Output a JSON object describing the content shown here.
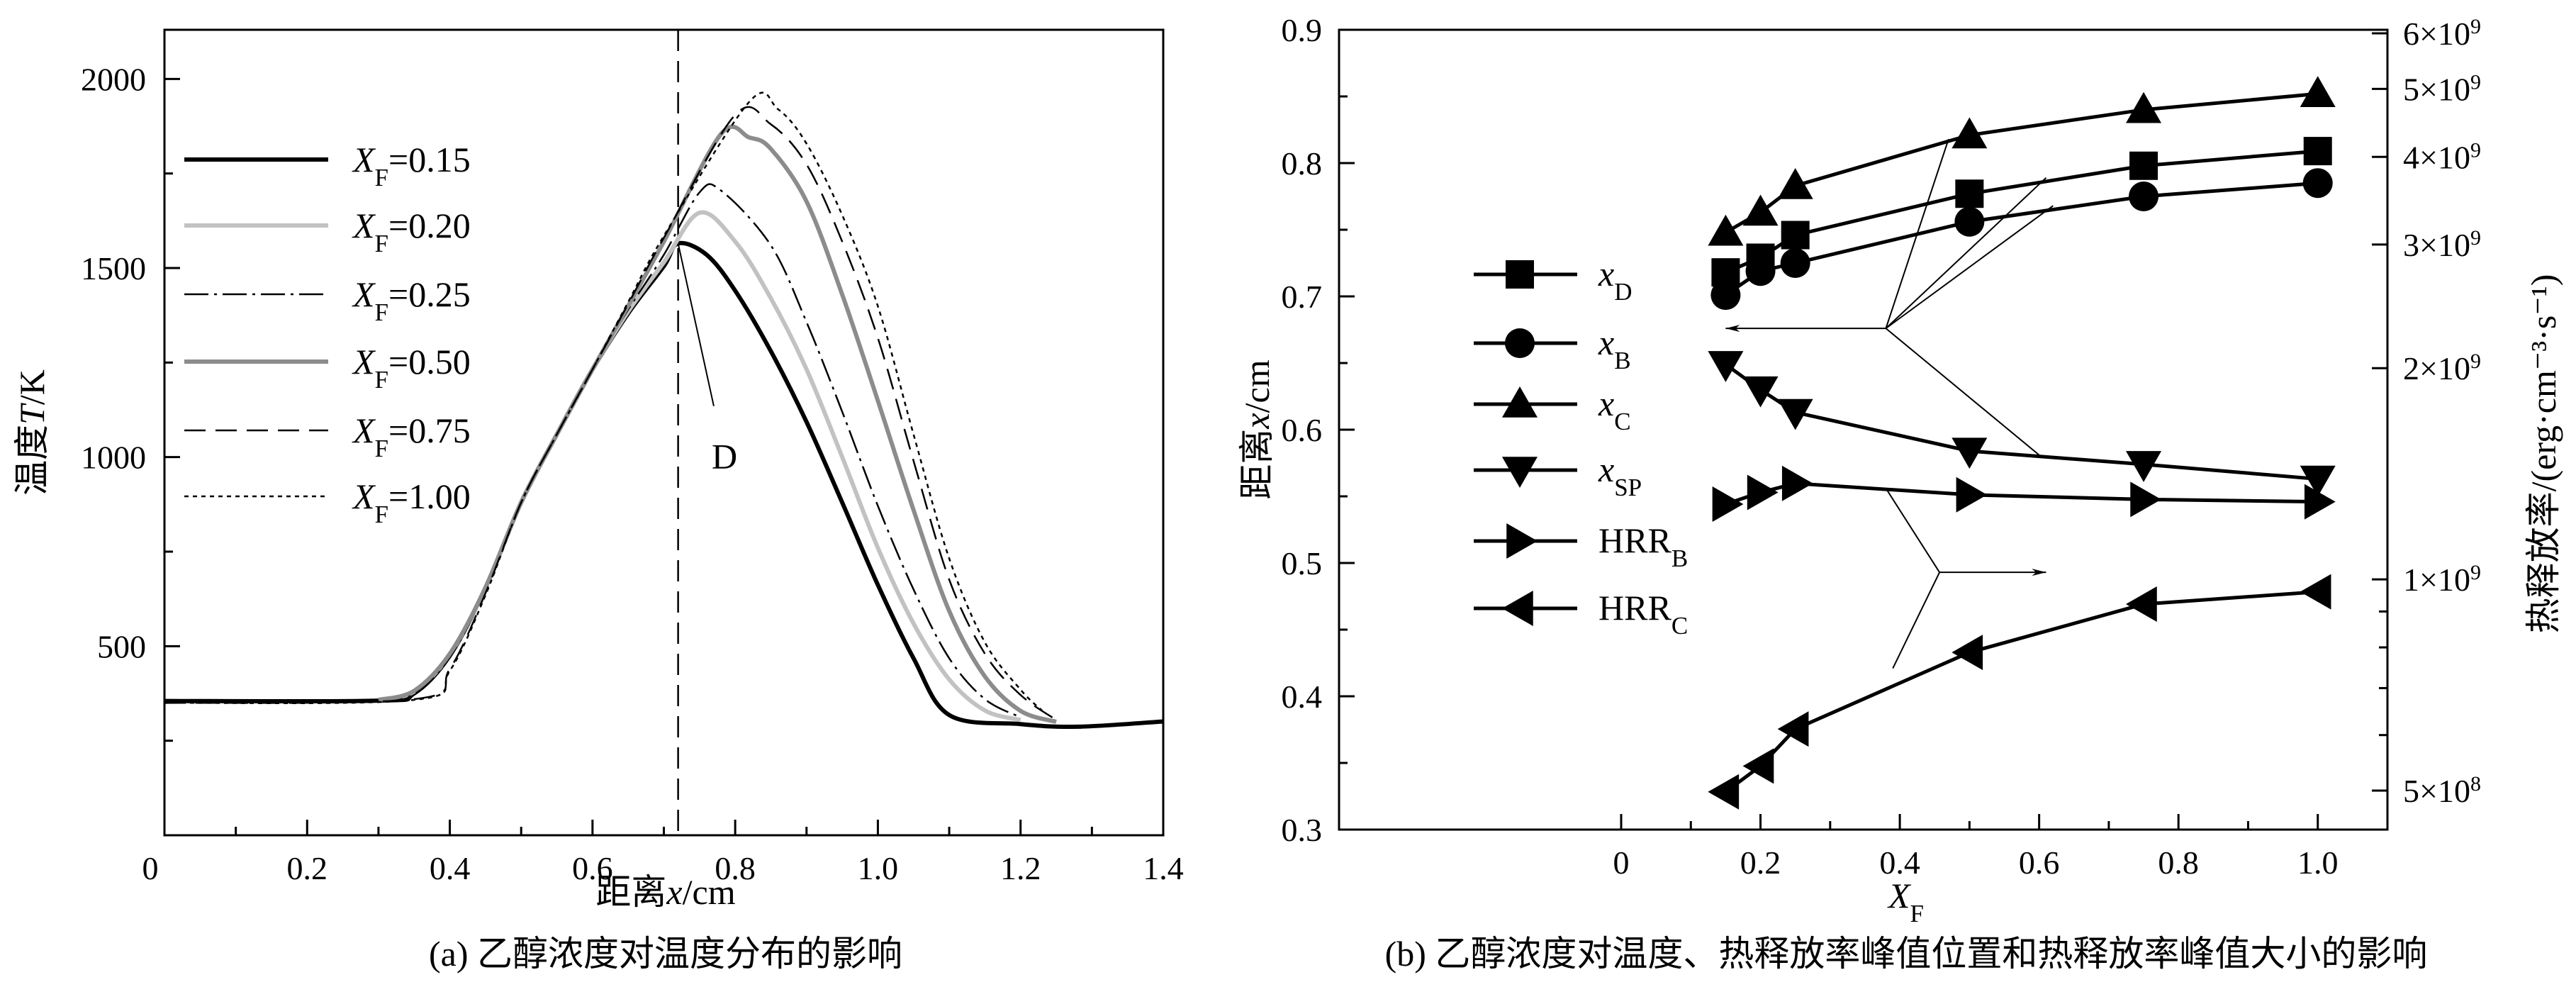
{
  "chart_data": [
    {
      "type": "line",
      "title": "",
      "caption": "(a) 乙醇浓度对温度分布的影响",
      "xlabel": {
        "pre": "距离",
        "var": "x",
        "post": "/cm"
      },
      "ylabel": {
        "pre": "温度",
        "var": "T",
        "post": "/K"
      },
      "xlim": [
        0,
        1.4
      ],
      "ylim": [
        0,
        2130
      ],
      "xticks": [
        0,
        0.2,
        0.4,
        0.6,
        0.8,
        1.0,
        1.2,
        1.4
      ],
      "xtick_labels": [
        "0",
        "0.2",
        "0.4",
        "0.6",
        "0.8",
        "1.0",
        "1.2",
        "1.4"
      ],
      "yticks": [
        500,
        1000,
        1500,
        2000
      ],
      "ytick_labels": [
        "500",
        "1000",
        "1500",
        "2000"
      ],
      "legend_position": "upper-left",
      "series": [
        {
          "var": "X",
          "sub": "F",
          "val": "=0.15",
          "color": "#000000",
          "style": "solid-thick",
          "points": [
            [
              0,
              355
            ],
            [
              0.3,
              356
            ],
            [
              0.35,
              375
            ],
            [
              0.4,
              475
            ],
            [
              0.45,
              655
            ],
            [
              0.5,
              880
            ],
            [
              0.55,
              1060
            ],
            [
              0.6,
              1232
            ],
            [
              0.65,
              1380
            ],
            [
              0.7,
              1505
            ],
            [
              0.72,
              1565
            ],
            [
              0.76,
              1535
            ],
            [
              0.8,
              1440
            ],
            [
              0.85,
              1280
            ],
            [
              0.9,
              1093
            ],
            [
              0.95,
              880
            ],
            [
              1.0,
              662
            ],
            [
              1.05,
              468
            ],
            [
              1.1,
              318
            ],
            [
              1.2,
              294
            ],
            [
              1.28,
              287
            ],
            [
              1.4,
              301
            ]
          ]
        },
        {
          "var": "X",
          "sub": "F",
          "val": "=0.20",
          "color": "#c2c2c2",
          "style": "solid-thick",
          "points": [
            [
              0.3,
              358
            ],
            [
              0.35,
              380
            ],
            [
              0.4,
              478
            ],
            [
              0.45,
              655
            ],
            [
              0.5,
              880
            ],
            [
              0.55,
              1060
            ],
            [
              0.6,
              1232
            ],
            [
              0.65,
              1385
            ],
            [
              0.7,
              1515
            ],
            [
              0.75,
              1646
            ],
            [
              0.8,
              1570
            ],
            [
              0.85,
              1420
            ],
            [
              0.9,
              1232
            ],
            [
              0.95,
              1000
            ],
            [
              1.0,
              760
            ],
            [
              1.05,
              560
            ],
            [
              1.1,
              412
            ],
            [
              1.15,
              330
            ],
            [
              1.2,
              305
            ]
          ]
        },
        {
          "var": "X",
          "sub": "F",
          "val": "=0.25",
          "color": "#000000",
          "style": "dashdot",
          "points": [
            [
              0.3,
              356
            ],
            [
              0.35,
              375
            ],
            [
              0.4,
              470
            ],
            [
              0.45,
              650
            ],
            [
              0.5,
              880
            ],
            [
              0.55,
              1060
            ],
            [
              0.6,
              1232
            ],
            [
              0.65,
              1390
            ],
            [
              0.7,
              1535
            ],
            [
              0.75,
              1700
            ],
            [
              0.78,
              1705
            ],
            [
              0.85,
              1560
            ],
            [
              0.9,
              1357
            ],
            [
              0.95,
              1120
            ],
            [
              1.0,
              871
            ],
            [
              1.05,
              650
            ],
            [
              1.1,
              468
            ],
            [
              1.15,
              360
            ],
            [
              1.2,
              312
            ]
          ]
        },
        {
          "var": "X",
          "sub": "F",
          "val": "=0.50",
          "color": "#8c8c8c",
          "style": "solid-thick",
          "points": [
            [
              0.3,
              358
            ],
            [
              0.35,
              382
            ],
            [
              0.4,
              480
            ],
            [
              0.45,
              655
            ],
            [
              0.5,
              880
            ],
            [
              0.55,
              1060
            ],
            [
              0.6,
              1232
            ],
            [
              0.65,
              1400
            ],
            [
              0.7,
              1570
            ],
            [
              0.78,
              1854
            ],
            [
              0.82,
              1845
            ],
            [
              0.85,
              1815
            ],
            [
              0.9,
              1676
            ],
            [
              0.95,
              1430
            ],
            [
              1.0,
              1149
            ],
            [
              1.05,
              860
            ],
            [
              1.1,
              593
            ],
            [
              1.15,
              420
            ],
            [
              1.2,
              329
            ],
            [
              1.25,
              300
            ]
          ]
        },
        {
          "var": "X",
          "sub": "F",
          "val": "=0.75",
          "color": "#000000",
          "style": "dashed",
          "points": [
            [
              0,
              350
            ],
            [
              0.35,
              360
            ],
            [
              0.4,
              440
            ],
            [
              0.45,
              640
            ],
            [
              0.5,
              880
            ],
            [
              0.55,
              1060
            ],
            [
              0.6,
              1232
            ],
            [
              0.65,
              1405
            ],
            [
              0.7,
              1580
            ],
            [
              0.8,
              1905
            ],
            [
              0.85,
              1880
            ],
            [
              0.9,
              1774
            ],
            [
              0.95,
              1570
            ],
            [
              1.0,
              1315
            ],
            [
              1.05,
              990
            ],
            [
              1.1,
              676
            ],
            [
              1.15,
              480
            ],
            [
              1.2,
              371
            ],
            [
              1.25,
              305
            ]
          ]
        },
        {
          "var": "X",
          "sub": "F",
          "val": "=1.00",
          "color": "#000000",
          "style": "dotted",
          "points": [
            [
              0,
              350
            ],
            [
              0.35,
              358
            ],
            [
              0.4,
              435
            ],
            [
              0.45,
              635
            ],
            [
              0.5,
              880
            ],
            [
              0.55,
              1060
            ],
            [
              0.6,
              1232
            ],
            [
              0.65,
              1410
            ],
            [
              0.7,
              1585
            ],
            [
              0.82,
              1940
            ],
            [
              0.86,
              1920
            ],
            [
              0.9,
              1829
            ],
            [
              0.95,
              1640
            ],
            [
              1.0,
              1399
            ],
            [
              1.05,
              1060
            ],
            [
              1.1,
              732
            ],
            [
              1.15,
              510
            ],
            [
              1.2,
              385
            ],
            [
              1.23,
              330
            ]
          ]
        }
      ],
      "annotations": {
        "vline_x": 0.72,
        "label": "D",
        "label_at": [
          0.785,
          970
        ],
        "leader_from": [
          0.72,
          1565
        ],
        "leader_to": [
          0.77,
          1135
        ]
      }
    },
    {
      "type": "line",
      "title": "",
      "caption": "(b) 乙醇浓度对温度、热释放率峰值位置和热释放率峰值大小的影响",
      "xlabel": {
        "pre": "",
        "var": "X",
        "sub": "F",
        "post": ""
      },
      "ylabel": {
        "pre": "距离",
        "var": "x",
        "post": "/cm"
      },
      "y2label": "热释放率/(erg·cm⁻³·s⁻¹)",
      "xlim": [
        -0.405,
        1.1
      ],
      "ylim": [
        0.3,
        0.9
      ],
      "y2lim": [
        440000000,
        6070000000
      ],
      "y2scale": "log",
      "xticks": [
        0,
        0.2,
        0.4,
        0.6,
        0.8,
        1.0
      ],
      "xtick_labels": [
        "0",
        "0.2",
        "0.4",
        "0.6",
        "0.8",
        "1.0"
      ],
      "yticks": [
        0.3,
        0.4,
        0.5,
        0.6,
        0.7,
        0.8,
        0.9
      ],
      "ytick_labels": [
        "0.3",
        "0.4",
        "0.5",
        "0.6",
        "0.7",
        "0.8",
        "0.9"
      ],
      "y2ticks": [
        500000000,
        1000000000,
        2000000000,
        3000000000,
        4000000000,
        5000000000,
        6000000000
      ],
      "y2tick_labels": [
        {
          "m": "5×10",
          "e": "8"
        },
        {
          "m": "1×10",
          "e": "9"
        },
        {
          "m": "2×10",
          "e": "9"
        },
        {
          "m": "3×10",
          "e": "9"
        },
        {
          "m": "4×10",
          "e": "9"
        },
        {
          "m": "5×10",
          "e": "9"
        },
        {
          "m": "6×10",
          "e": "9"
        }
      ],
      "legend_position": "center-left",
      "x": [
        0.15,
        0.2,
        0.25,
        0.5,
        0.75,
        1.0
      ],
      "series": [
        {
          "name": "x",
          "sub": "D",
          "italic": true,
          "marker": "square",
          "axis": "left",
          "values": [
            0.718,
            0.729,
            0.746,
            0.777,
            0.798,
            0.809
          ]
        },
        {
          "name": "x",
          "sub": "B",
          "italic": true,
          "marker": "circle",
          "axis": "left",
          "values": [
            0.701,
            0.719,
            0.725,
            0.756,
            0.775,
            0.785
          ]
        },
        {
          "name": "x",
          "sub": "C",
          "italic": true,
          "marker": "triangle-up",
          "axis": "left",
          "values": [
            0.748,
            0.763,
            0.783,
            0.821,
            0.84,
            0.852
          ]
        },
        {
          "name": "x",
          "sub": "SP",
          "italic": true,
          "marker": "triangle-down",
          "axis": "left",
          "values": [
            0.649,
            0.63,
            0.613,
            0.584,
            0.574,
            0.563
          ]
        },
        {
          "name": "HRR",
          "sub": "B",
          "italic": false,
          "marker": "triangle-right",
          "axis": "right",
          "values": [
            1280000000,
            1330000000,
            1370000000,
            1320000000,
            1300000000,
            1290000000
          ]
        },
        {
          "name": "HRR",
          "sub": "C",
          "italic": false,
          "marker": "triangle-left",
          "axis": "right",
          "values": [
            498000000,
            542000000,
            612000000,
            787000000,
            922000000,
            960000000
          ]
        }
      ],
      "annotations": [
        {
          "hub": [
            0.38,
            0.676
          ],
          "arrow_to": [
            0.15,
            0.676
          ],
          "spokes": [
            [
              0.47,
              0.818
            ],
            [
              0.61,
              0.789
            ],
            [
              0.62,
              0.768
            ],
            [
              0.6,
              0.581
            ]
          ]
        },
        {
          "hub": [
            0.457,
            0.493
          ],
          "arrow_to": [
            0.61,
            0.493
          ],
          "spokes": [
            [
              0.38,
              0.556
            ],
            [
              0.39,
              0.421
            ]
          ]
        }
      ]
    }
  ]
}
